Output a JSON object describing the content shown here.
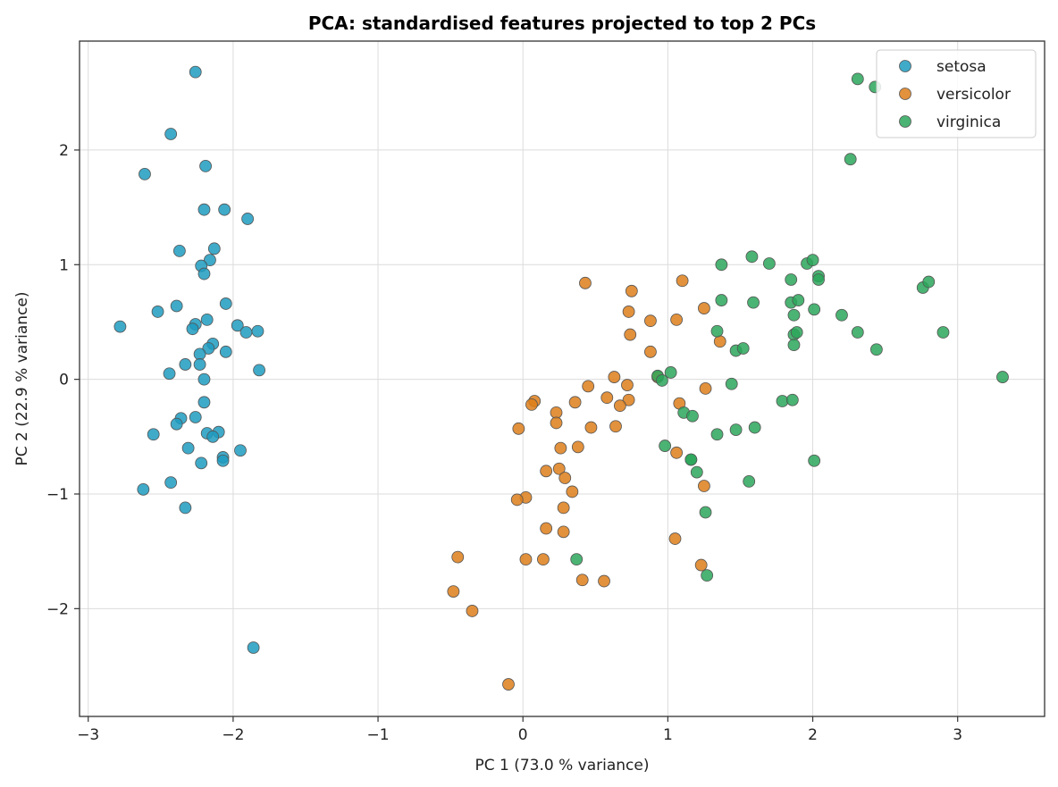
{
  "chart_data": {
    "type": "scatter",
    "title": "PCA: standardised features projected to top 2 PCs",
    "xlabel": "PC 1   (73.0 % variance)",
    "ylabel": "PC 2   (22.9 % variance)",
    "xlim": [
      -3.06,
      3.6
    ],
    "ylim": [
      -2.94,
      2.95
    ],
    "xticks": [
      -3,
      -2,
      -1,
      0,
      1,
      2,
      3
    ],
    "xtick_labels": [
      "−3",
      "−2",
      "−1",
      "0",
      "1",
      "2",
      "3"
    ],
    "yticks": [
      -2,
      -1,
      0,
      1,
      2
    ],
    "ytick_labels": [
      "−2",
      "−1",
      "0",
      "1",
      "2"
    ],
    "grid": true,
    "legend_position": "top-right",
    "series": [
      {
        "name": "setosa",
        "color": "#1f9bbf",
        "points": [
          [
            -2.26,
            2.68
          ],
          [
            -2.43,
            2.14
          ],
          [
            -2.61,
            1.79
          ],
          [
            -2.19,
            1.86
          ],
          [
            -2.2,
            1.48
          ],
          [
            -2.06,
            1.48
          ],
          [
            -1.9,
            1.4
          ],
          [
            -2.37,
            1.12
          ],
          [
            -2.13,
            1.14
          ],
          [
            -2.16,
            1.04
          ],
          [
            -2.22,
            0.99
          ],
          [
            -2.2,
            0.92
          ],
          [
            -2.78,
            0.46
          ],
          [
            -2.52,
            0.59
          ],
          [
            -2.39,
            0.64
          ],
          [
            -2.05,
            0.66
          ],
          [
            -2.26,
            0.48
          ],
          [
            -2.18,
            0.52
          ],
          [
            -2.28,
            0.44
          ],
          [
            -1.97,
            0.47
          ],
          [
            -1.91,
            0.41
          ],
          [
            -1.83,
            0.42
          ],
          [
            -2.14,
            0.31
          ],
          [
            -2.17,
            0.27
          ],
          [
            -2.05,
            0.24
          ],
          [
            -2.23,
            0.22
          ],
          [
            -2.33,
            0.13
          ],
          [
            -2.23,
            0.13
          ],
          [
            -2.44,
            0.05
          ],
          [
            -1.82,
            0.08
          ],
          [
            -2.2,
            0.0
          ],
          [
            -2.2,
            -0.2
          ],
          [
            -2.36,
            -0.34
          ],
          [
            -2.26,
            -0.33
          ],
          [
            -2.39,
            -0.39
          ],
          [
            -2.18,
            -0.47
          ],
          [
            -2.1,
            -0.46
          ],
          [
            -2.14,
            -0.5
          ],
          [
            -2.55,
            -0.48
          ],
          [
            -2.31,
            -0.6
          ],
          [
            -1.95,
            -0.62
          ],
          [
            -2.07,
            -0.68
          ],
          [
            -2.07,
            -0.71
          ],
          [
            -2.22,
            -0.73
          ],
          [
            -2.62,
            -0.96
          ],
          [
            -2.43,
            -0.9
          ],
          [
            -2.33,
            -1.12
          ],
          [
            -1.86,
            -2.34
          ]
        ]
      },
      {
        "name": "versicolor",
        "color": "#dd7e1a",
        "points": [
          [
            0.43,
            0.84
          ],
          [
            0.75,
            0.77
          ],
          [
            1.1,
            0.86
          ],
          [
            0.73,
            0.59
          ],
          [
            1.25,
            0.62
          ],
          [
            0.88,
            0.51
          ],
          [
            1.06,
            0.52
          ],
          [
            0.74,
            0.39
          ],
          [
            1.36,
            0.33
          ],
          [
            0.88,
            0.24
          ],
          [
            0.93,
            0.02
          ],
          [
            0.63,
            0.02
          ],
          [
            0.72,
            -0.05
          ],
          [
            0.45,
            -0.06
          ],
          [
            0.58,
            -0.16
          ],
          [
            0.08,
            -0.19
          ],
          [
            0.06,
            -0.22
          ],
          [
            0.36,
            -0.2
          ],
          [
            0.73,
            -0.18
          ],
          [
            0.67,
            -0.23
          ],
          [
            0.23,
            -0.29
          ],
          [
            1.08,
            -0.21
          ],
          [
            1.26,
            -0.08
          ],
          [
            0.23,
            -0.38
          ],
          [
            0.47,
            -0.42
          ],
          [
            0.64,
            -0.41
          ],
          [
            -0.03,
            -0.43
          ],
          [
            0.38,
            -0.59
          ],
          [
            0.26,
            -0.6
          ],
          [
            0.16,
            -0.8
          ],
          [
            0.25,
            -0.78
          ],
          [
            0.29,
            -0.86
          ],
          [
            0.34,
            -0.98
          ],
          [
            0.02,
            -1.03
          ],
          [
            -0.04,
            -1.05
          ],
          [
            0.28,
            -1.12
          ],
          [
            1.25,
            -0.93
          ],
          [
            1.06,
            -0.64
          ],
          [
            0.16,
            -1.3
          ],
          [
            0.28,
            -1.33
          ],
          [
            1.05,
            -1.39
          ],
          [
            -0.45,
            -1.55
          ],
          [
            0.02,
            -1.57
          ],
          [
            0.14,
            -1.57
          ],
          [
            0.41,
            -1.75
          ],
          [
            0.56,
            -1.76
          ],
          [
            1.23,
            -1.62
          ],
          [
            -0.48,
            -1.85
          ],
          [
            -0.35,
            -2.02
          ],
          [
            -0.1,
            -2.66
          ]
        ]
      },
      {
        "name": "virginica",
        "color": "#2ba65a",
        "points": [
          [
            2.31,
            2.62
          ],
          [
            2.43,
            2.55
          ],
          [
            2.26,
            1.92
          ],
          [
            1.58,
            1.07
          ],
          [
            1.37,
            1.0
          ],
          [
            1.7,
            1.01
          ],
          [
            1.96,
            1.01
          ],
          [
            2.0,
            1.04
          ],
          [
            2.04,
            0.9
          ],
          [
            2.04,
            0.87
          ],
          [
            1.85,
            0.87
          ],
          [
            2.76,
            0.8
          ],
          [
            2.8,
            0.85
          ],
          [
            1.37,
            0.69
          ],
          [
            1.59,
            0.67
          ],
          [
            1.85,
            0.67
          ],
          [
            1.9,
            0.69
          ],
          [
            2.01,
            0.61
          ],
          [
            1.87,
            0.56
          ],
          [
            2.2,
            0.56
          ],
          [
            1.34,
            0.42
          ],
          [
            1.87,
            0.39
          ],
          [
            1.89,
            0.41
          ],
          [
            2.31,
            0.41
          ],
          [
            2.9,
            0.41
          ],
          [
            1.87,
            0.3
          ],
          [
            1.47,
            0.25
          ],
          [
            1.52,
            0.27
          ],
          [
            2.44,
            0.26
          ],
          [
            3.31,
            0.02
          ],
          [
            1.02,
            0.06
          ],
          [
            0.93,
            0.03
          ],
          [
            0.96,
            -0.01
          ],
          [
            1.44,
            -0.04
          ],
          [
            1.79,
            -0.19
          ],
          [
            1.86,
            -0.18
          ],
          [
            1.11,
            -0.29
          ],
          [
            1.17,
            -0.32
          ],
          [
            1.34,
            -0.48
          ],
          [
            1.47,
            -0.44
          ],
          [
            1.6,
            -0.42
          ],
          [
            0.98,
            -0.58
          ],
          [
            1.16,
            -0.7
          ],
          [
            1.2,
            -0.81
          ],
          [
            1.56,
            -0.89
          ],
          [
            2.01,
            -0.71
          ],
          [
            1.26,
            -1.16
          ],
          [
            0.37,
            -1.57
          ],
          [
            1.27,
            -1.71
          ],
          [
            1.16,
            -0.7
          ]
        ]
      }
    ]
  }
}
